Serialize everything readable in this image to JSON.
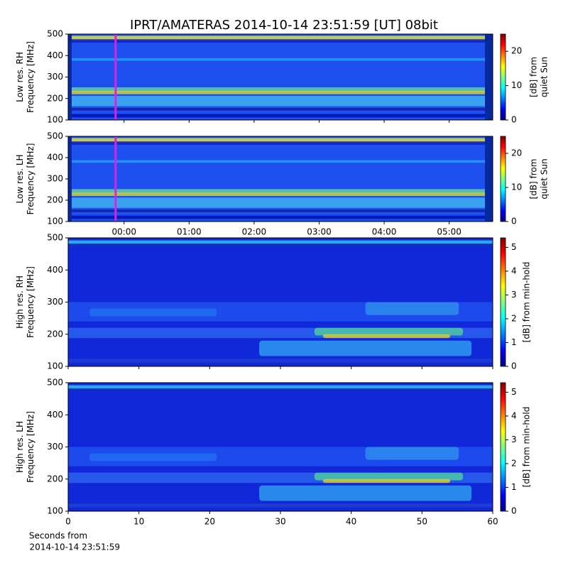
{
  "title": "IPRT/AMATERAS 2014-10-14 23:51:59 [UT]   08bit",
  "xlabel": [
    "Seconds from",
    "2014-10-14 23:51:59"
  ],
  "chart_data": [
    {
      "type": "heatmap",
      "ylabel": [
        "Low res. RH",
        "Frequency [MHz]"
      ],
      "ylim": [
        100,
        500
      ],
      "yticks": [
        100,
        200,
        300,
        400,
        500
      ],
      "xlim": [
        -0.86,
        5.67
      ],
      "xticks": [
        0,
        1,
        2,
        3,
        4,
        5
      ],
      "marker_x": -0.13,
      "marker_color": "#e020e0",
      "clim": [
        0,
        25
      ],
      "cticks": [
        0,
        10,
        20
      ],
      "clabel": [
        "[dB] from",
        "quiet Sun"
      ]
    },
    {
      "type": "heatmap",
      "ylabel": [
        "Low res. LH",
        "Frequency [MHz]"
      ],
      "ylim": [
        100,
        500
      ],
      "yticks": [
        100,
        200,
        300,
        400,
        500
      ],
      "xlim": [
        -0.86,
        5.67
      ],
      "xticks": [
        {
          "value": 0,
          "label": "00:00"
        },
        {
          "value": 1,
          "label": "01:00"
        },
        {
          "value": 2,
          "label": "02:00"
        },
        {
          "value": 3,
          "label": "03:00"
        },
        {
          "value": 4,
          "label": "04:00"
        },
        {
          "value": 5,
          "label": "05:00"
        }
      ],
      "marker_x": -0.13,
      "marker_color": "#e020e0",
      "clim": [
        0,
        25
      ],
      "cticks": [
        0,
        10,
        20
      ],
      "clabel": [
        "[dB] from",
        "quiet Sun"
      ]
    },
    {
      "type": "heatmap",
      "ylabel": [
        "High res. RH",
        "Frequency [MHz]"
      ],
      "ylim": [
        100,
        500
      ],
      "yticks": [
        100,
        200,
        300,
        400,
        500
      ],
      "xlim": [
        0,
        60
      ],
      "xticks": [
        0,
        10,
        20,
        30,
        40,
        50,
        60
      ],
      "clim": [
        0,
        5.4
      ],
      "cticks": [
        0,
        1,
        2,
        3,
        4,
        5
      ],
      "clabel": [
        "[dB] from min-hold"
      ]
    },
    {
      "type": "heatmap",
      "ylabel": [
        "High res. LH",
        "Frequency [MHz]"
      ],
      "ylim": [
        100,
        500
      ],
      "yticks": [
        100,
        200,
        300,
        400,
        500
      ],
      "xlim": [
        0,
        60
      ],
      "xticks": [
        {
          "value": 0,
          "label": "0"
        },
        {
          "value": 10,
          "label": "10"
        },
        {
          "value": 20,
          "label": "20"
        },
        {
          "value": 30,
          "label": "30"
        },
        {
          "value": 40,
          "label": "40"
        },
        {
          "value": 50,
          "label": "50"
        },
        {
          "value": 60,
          "label": "60"
        }
      ],
      "clim": [
        0,
        5.4
      ],
      "cticks": [
        0,
        1,
        2,
        3,
        4,
        5
      ],
      "clabel": [
        "[dB] from min-hold"
      ]
    }
  ]
}
